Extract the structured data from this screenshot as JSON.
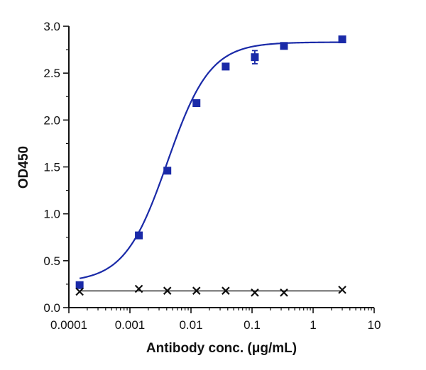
{
  "chart_data": {
    "type": "scatter",
    "x_scale": "log",
    "xlabel": "Antibody conc. (μg/mL)",
    "ylabel": "OD450",
    "xlim": [
      0.0001,
      10
    ],
    "ylim": [
      0.0,
      3.0
    ],
    "x_ticks": [
      "0.0001",
      "0.001",
      "0.01",
      "0.1",
      "1",
      "10"
    ],
    "y_ticks": [
      "0.0",
      "0.5",
      "1.0",
      "1.5",
      "2.0",
      "2.5",
      "3.0"
    ],
    "grid": false,
    "legend": "none",
    "series": [
      {
        "marker": "square",
        "color": "#1a2aa8",
        "fit": "four-parameter logistic",
        "x": [
          0.00015,
          0.0014,
          0.0041,
          0.0123,
          0.037,
          0.111,
          0.333,
          3.0
        ],
        "y": [
          0.24,
          0.77,
          1.46,
          2.18,
          2.57,
          2.67,
          2.79,
          2.86
        ],
        "error": [
          0,
          0,
          0,
          0,
          0,
          0.07,
          0,
          0
        ]
      },
      {
        "marker": "x",
        "color": "#111111",
        "fit": "flat line",
        "x": [
          0.00015,
          0.0014,
          0.0041,
          0.0123,
          0.037,
          0.111,
          0.333,
          3.0
        ],
        "y": [
          0.17,
          0.2,
          0.18,
          0.18,
          0.18,
          0.16,
          0.16,
          0.19
        ]
      }
    ]
  }
}
